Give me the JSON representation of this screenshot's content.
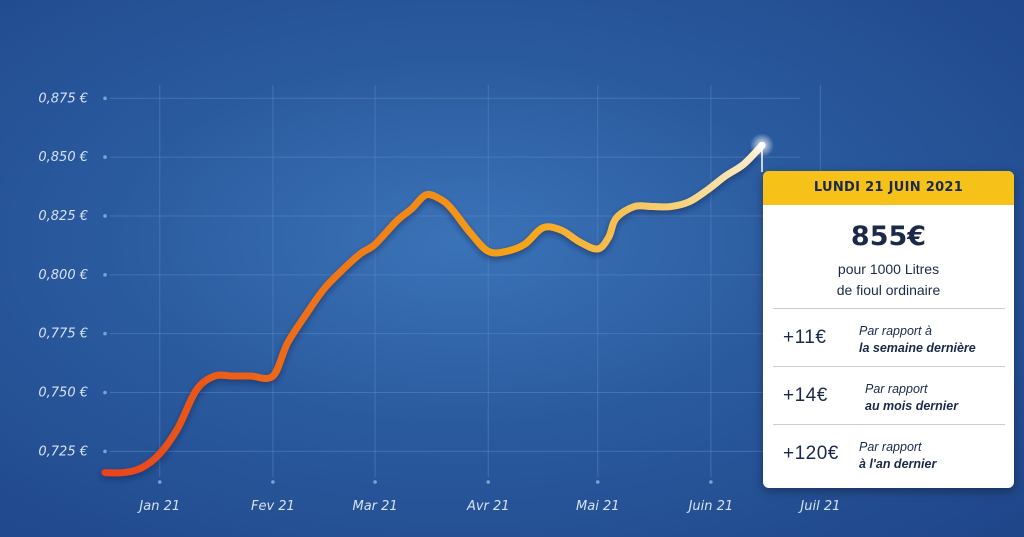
{
  "chart_data": {
    "type": "line",
    "y_ticks": [
      "0,725 €",
      "0,750 €",
      "0,775 €",
      "0,800 €",
      "0,825 €",
      "0,850 €",
      "0,875 €"
    ],
    "y_tick_values": [
      0.725,
      0.75,
      0.775,
      0.8,
      0.825,
      0.85,
      0.875
    ],
    "ylim": [
      0.712,
      0.887
    ],
    "x_ticks": [
      "Jan 21",
      "Fev 21",
      "Mar 21",
      "Avr 21",
      "Mai 21",
      "Juin 21",
      "Juil 21"
    ],
    "x_tick_days": [
      15,
      46,
      74,
      105,
      135,
      166,
      196
    ],
    "xlim": [
      0,
      200
    ],
    "grid": true,
    "series": [
      {
        "days": [
          0,
          5,
          10,
          15,
          20,
          25,
          30,
          35,
          40,
          46,
          50,
          55,
          60,
          65,
          70,
          74,
          80,
          84,
          88,
          92,
          95,
          100,
          105,
          110,
          115,
          120,
          125,
          130,
          135,
          138,
          140,
          145,
          150,
          155,
          160,
          165,
          170,
          175,
          180
        ],
        "values": [
          0.716,
          0.716,
          0.718,
          0.724,
          0.735,
          0.751,
          0.757,
          0.757,
          0.757,
          0.757,
          0.771,
          0.783,
          0.794,
          0.802,
          0.809,
          0.813,
          0.823,
          0.828,
          0.834,
          0.832,
          0.828,
          0.818,
          0.81,
          0.81,
          0.813,
          0.82,
          0.819,
          0.814,
          0.811,
          0.816,
          0.824,
          0.829,
          0.829,
          0.829,
          0.831,
          0.836,
          0.842,
          0.847,
          0.855
        ]
      }
    ],
    "gradient_colors": [
      "#e8431c",
      "#f07a12",
      "#f7a516",
      "#f6d27a",
      "#ffffff"
    ]
  },
  "card": {
    "date": "LUNDI 21 JUIN 2021",
    "price": "855€",
    "desc_line1": "pour 1000 Litres",
    "desc_line2": "de fioul ordinaire",
    "rows": [
      {
        "delta": "+11€",
        "label1": "Par rapport à",
        "label2": "la  semaine dernière"
      },
      {
        "delta": "+14€",
        "label1": "Par rapport",
        "label2": "au mois dernier"
      },
      {
        "delta": "+120€",
        "label1": "Par rapport",
        "label2": "à l'an dernier"
      }
    ]
  },
  "colors": {
    "card_header": "#f6c21a",
    "text_dark": "#1b2a4a",
    "background": "#2a5a9e"
  }
}
